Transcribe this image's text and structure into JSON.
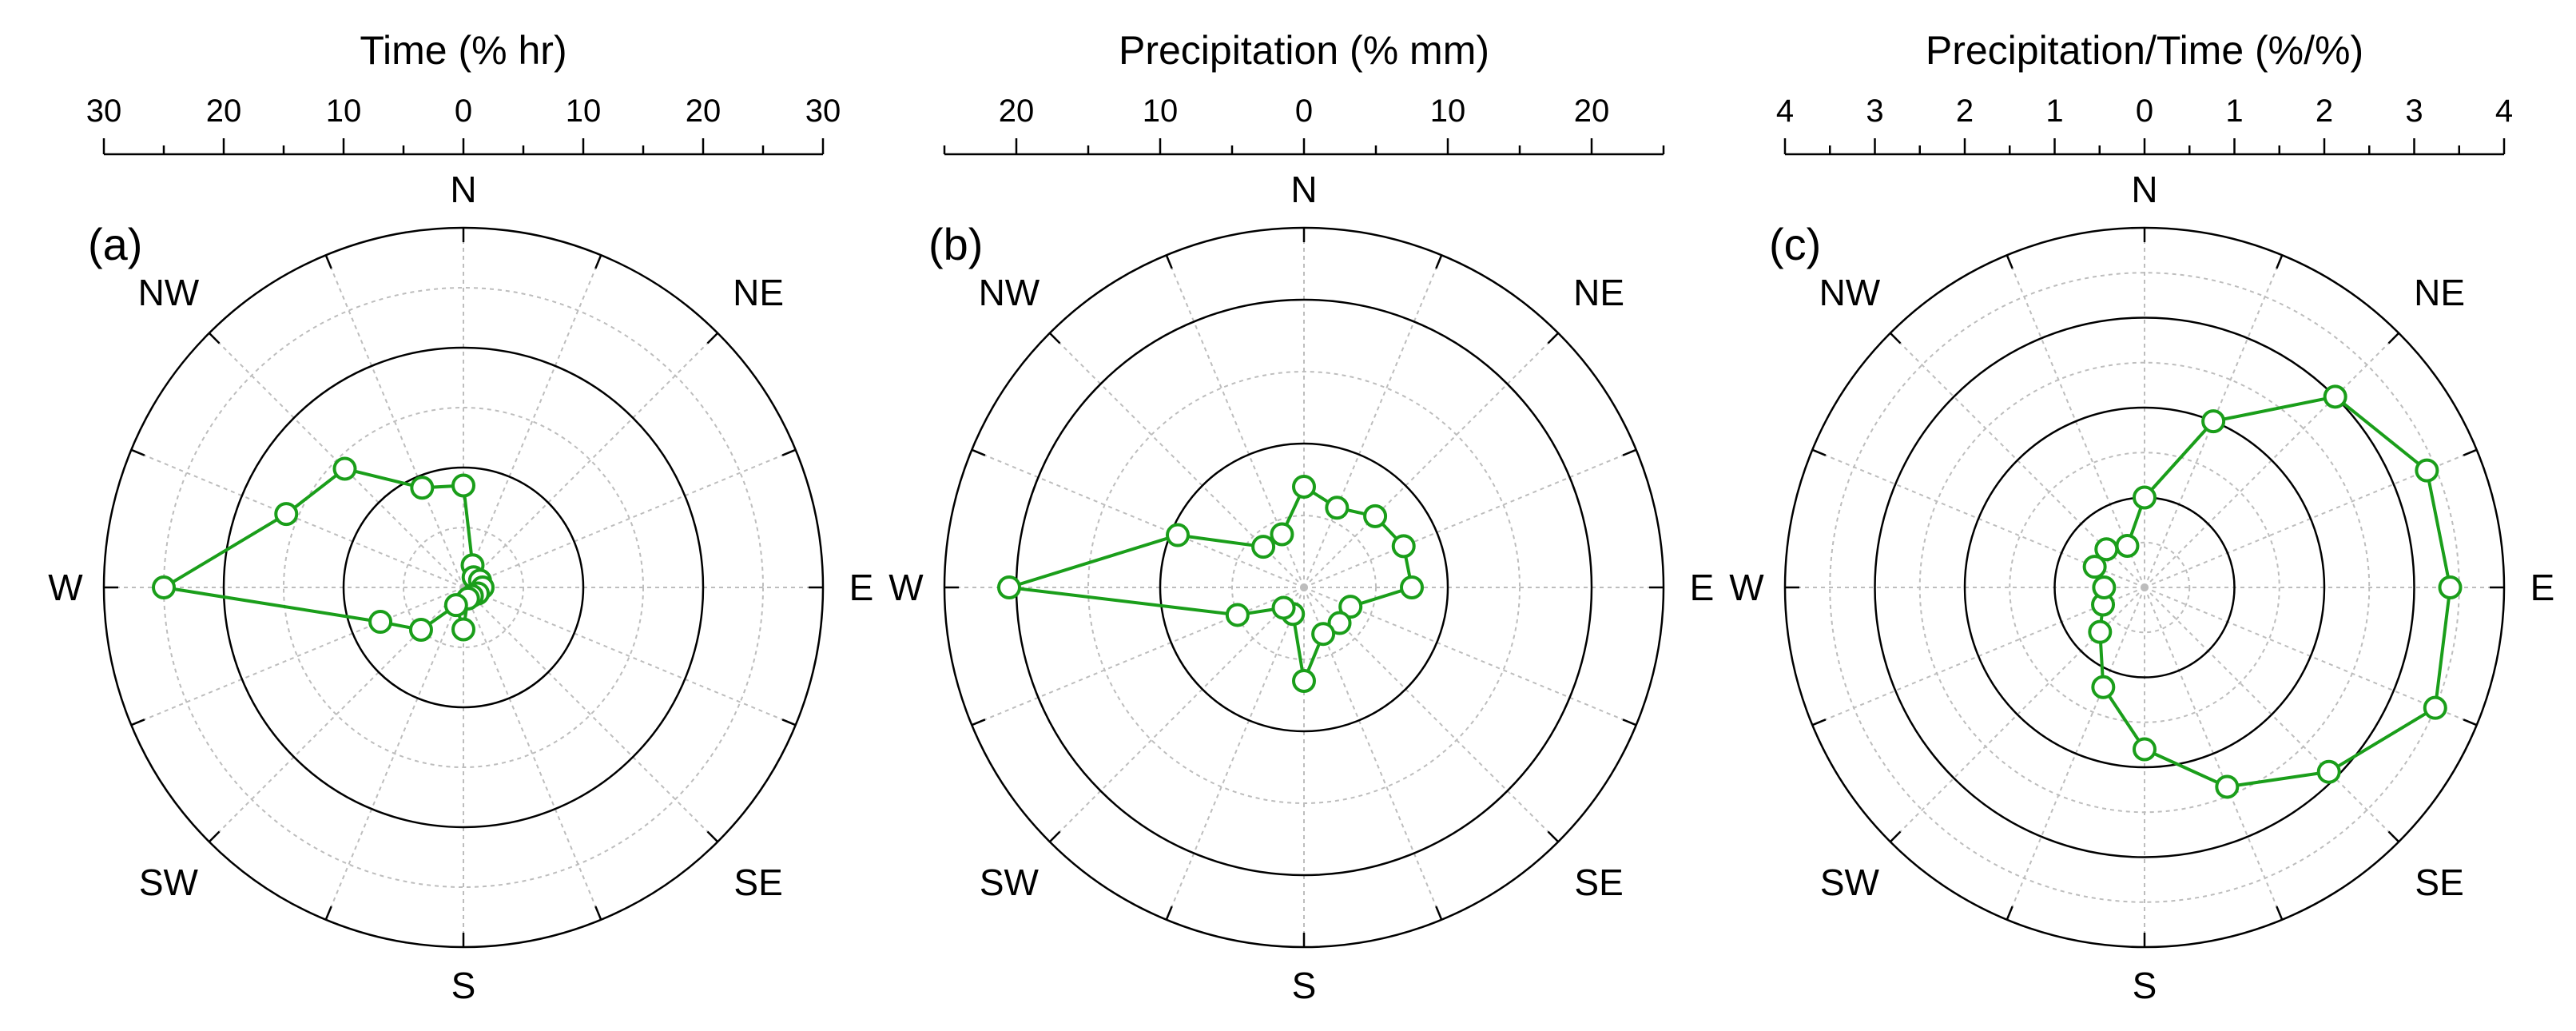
{
  "chart_data": [
    {
      "type": "line",
      "coordinate_system": "polar",
      "panel_label": "(a)",
      "title": "Time (% hr)",
      "rmax": 30,
      "solid_circles": [
        10,
        20,
        30
      ],
      "dotted_circles": [
        5,
        15,
        25
      ],
      "top_axis_ticks": [
        "30",
        "20",
        "10",
        "0",
        "10",
        "20",
        "30"
      ],
      "top_axis_tick_values": [
        -30,
        -20,
        -10,
        0,
        10,
        20,
        30
      ],
      "top_axis_minor_step": 5,
      "directions": [
        "N",
        "NE",
        "E",
        "SE",
        "S",
        "SW",
        "W",
        "NW"
      ],
      "series": [
        {
          "name": "Time",
          "theta_deg": [
            0,
            22.5,
            45,
            67.5,
            90,
            112.5,
            135,
            157.5,
            180,
            202.5,
            225,
            247.5,
            270,
            292.5,
            315,
            337.5
          ],
          "values": [
            8.5,
            2.0,
            1.2,
            1.5,
            1.6,
            1.3,
            1.0,
            1.0,
            3.5,
            1.6,
            5.0,
            7.5,
            25.0,
            16.0,
            14.0,
            9.0
          ],
          "color": "#1a9e1a"
        }
      ]
    },
    {
      "type": "line",
      "coordinate_system": "polar",
      "panel_label": "(b)",
      "title": "Precipitation (% mm)",
      "rmax": 25,
      "solid_circles": [
        10,
        20,
        25
      ],
      "dotted_circles": [
        5,
        15
      ],
      "top_axis_ticks": [
        "20",
        "10",
        "0",
        "10",
        "20"
      ],
      "top_axis_tick_values": [
        -20,
        -10,
        0,
        10,
        20
      ],
      "top_axis_minor_step": 5,
      "directions": [
        "N",
        "NE",
        "E",
        "SE",
        "S",
        "SW",
        "W",
        "NW"
      ],
      "series": [
        {
          "name": "Precipitation",
          "theta_deg": [
            0,
            22.5,
            45,
            67.5,
            90,
            112.5,
            135,
            157.5,
            180,
            202.5,
            225,
            247.5,
            270,
            292.5,
            315,
            337.5
          ],
          "values": [
            7.0,
            6.0,
            7.0,
            7.5,
            7.5,
            3.5,
            3.5,
            3.5,
            6.5,
            2.0,
            2.0,
            5.0,
            20.5,
            9.5,
            4.0,
            4.0
          ],
          "color": "#1a9e1a"
        }
      ]
    },
    {
      "type": "line",
      "coordinate_system": "polar",
      "panel_label": "(c)",
      "title": "Precipitation/Time (%/%)",
      "rmax": 4,
      "solid_circles": [
        1,
        2,
        3,
        4
      ],
      "dotted_circles": [
        0.5,
        1.5,
        2.5,
        3.5
      ],
      "top_axis_ticks": [
        "4",
        "3",
        "2",
        "1",
        "0",
        "1",
        "2",
        "3",
        "4"
      ],
      "top_axis_tick_values": [
        -4,
        -3,
        -2,
        -1,
        0,
        1,
        2,
        3,
        4
      ],
      "top_axis_minor_step": 0.5,
      "directions": [
        "N",
        "NE",
        "E",
        "SE",
        "S",
        "SW",
        "W",
        "NW"
      ],
      "series": [
        {
          "name": "Precipitation/Time",
          "theta_deg": [
            0,
            22.5,
            45,
            67.5,
            90,
            112.5,
            135,
            157.5,
            180,
            202.5,
            225,
            247.5,
            270,
            292.5,
            315,
            337.5
          ],
          "values": [
            1.0,
            2.0,
            3.0,
            3.4,
            3.4,
            3.5,
            2.9,
            2.4,
            1.8,
            1.2,
            0.7,
            0.5,
            0.45,
            0.6,
            0.6,
            0.5
          ],
          "color": "#1a9e1a"
        }
      ]
    }
  ]
}
